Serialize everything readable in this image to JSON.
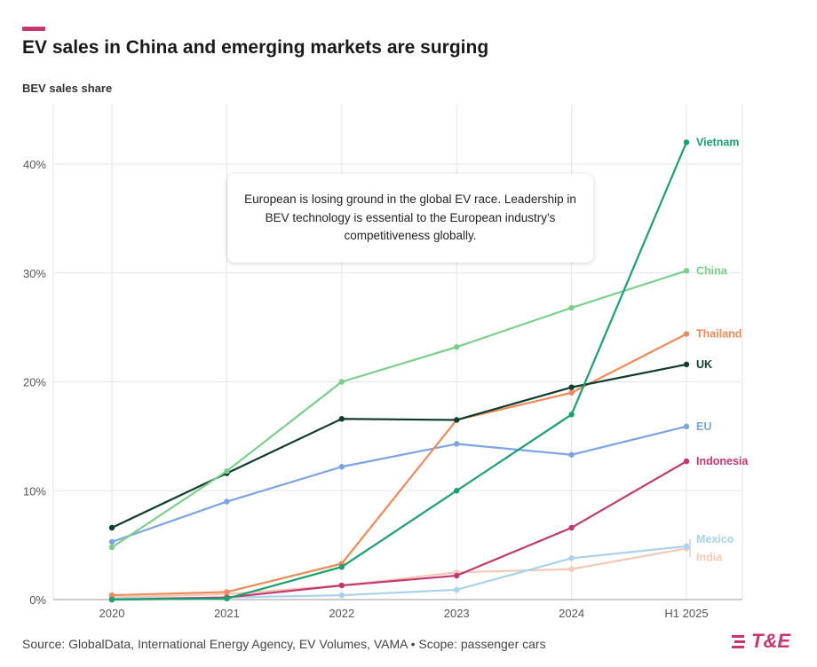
{
  "header": {
    "title": "EV sales in China and emerging markets are surging",
    "subtitle": "BEV sales share"
  },
  "callout": {
    "text": "European is losing ground in the global EV race. Leadership in BEV technology is essential to the European industry's competitiveness globally."
  },
  "footer": {
    "source": "Source: GlobalData, International Energy Agency, EV Volumes, VAMA • Scope: passenger cars",
    "logo_text": "T&E"
  },
  "colors": {
    "accent": "#c8366f",
    "grid": "#e6e6e6",
    "axis_text": "#555555"
  },
  "chart_data": {
    "type": "line",
    "categories": [
      "2020",
      "2021",
      "2022",
      "2023",
      "2024",
      "H1 2025"
    ],
    "ylim": [
      0,
      45
    ],
    "yticks": [
      0,
      10,
      20,
      30,
      40
    ],
    "ytick_labels": [
      "0%",
      "10%",
      "20%",
      "30%",
      "40%"
    ],
    "ylabel": "BEV sales share",
    "series": [
      {
        "name": "India",
        "color": "#f2c9b6",
        "values": [
          0.2,
          0.5,
          1.3,
          2.5,
          2.8,
          4.7
        ]
      },
      {
        "name": "Mexico",
        "color": "#a9d3ec",
        "values": [
          0.1,
          0.2,
          0.4,
          0.9,
          3.8,
          4.9
        ]
      },
      {
        "name": "Indonesia",
        "color": "#c2386e",
        "values": [
          0.0,
          0.2,
          1.3,
          2.2,
          6.6,
          12.7
        ]
      },
      {
        "name": "EU",
        "color": "#7ba3e6",
        "values": [
          5.3,
          9.0,
          12.2,
          14.3,
          13.3,
          15.9
        ]
      },
      {
        "name": "Thailand",
        "color": "#ef8a58",
        "values": [
          0.4,
          0.7,
          3.3,
          16.5,
          19.0,
          24.4
        ]
      },
      {
        "name": "UK",
        "color": "#0f3d2e",
        "values": [
          6.6,
          11.6,
          16.6,
          16.5,
          19.5,
          21.6
        ]
      },
      {
        "name": "China",
        "color": "#79d08b",
        "values": [
          4.8,
          11.8,
          20.0,
          23.2,
          26.8,
          30.2
        ]
      },
      {
        "name": "Vietnam",
        "color": "#17a270",
        "values": [
          0.0,
          0.1,
          3.0,
          10.0,
          17.0,
          42.0
        ]
      }
    ]
  }
}
